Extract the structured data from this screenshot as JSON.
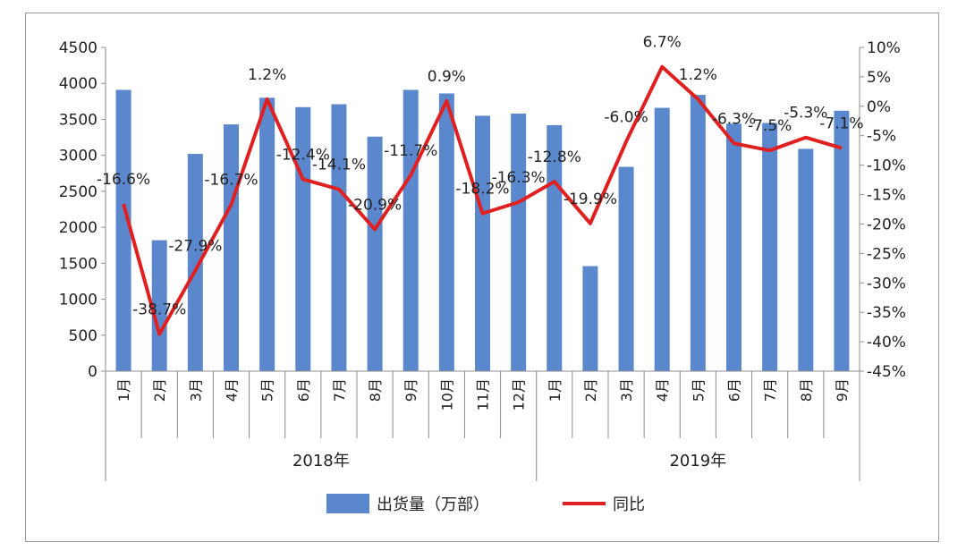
{
  "chart_data": {
    "type": "bar+line",
    "title": "",
    "xlabel": "",
    "ylabel": "",
    "categories": [
      "1月",
      "2月",
      "3月",
      "4月",
      "5月",
      "6月",
      "7月",
      "8月",
      "9月",
      "10月",
      "11月",
      "12月",
      "1月",
      "2月",
      "3月",
      "4月",
      "5月",
      "6月",
      "7月",
      "8月",
      "9月"
    ],
    "groups": [
      {
        "label": "2018年",
        "count": 12
      },
      {
        "label": "2019年",
        "count": 9
      }
    ],
    "series": [
      {
        "name": "出货量（万部）",
        "type": "bar",
        "axis": "left",
        "color": "#5B87CC",
        "values": [
          3910,
          1820,
          3020,
          3430,
          3800,
          3670,
          3710,
          3260,
          3910,
          3860,
          3550,
          3580,
          3420,
          1460,
          2840,
          3660,
          3840,
          3440,
          3450,
          3090,
          3620
        ]
      },
      {
        "name": "同比",
        "type": "line",
        "axis": "right",
        "color": "#E02020",
        "values": [
          -16.6,
          -38.7,
          -27.9,
          -16.7,
          1.2,
          -12.4,
          -14.1,
          -20.9,
          -11.7,
          0.9,
          -18.2,
          -16.3,
          -12.8,
          -19.9,
          -6.0,
          6.7,
          1.2,
          -6.3,
          -7.5,
          -5.3,
          -7.1
        ],
        "labels": [
          "-16.6%",
          "-38.7%",
          "-27.9%",
          "-16.7%",
          "1.2%",
          "-12.4%",
          "-14.1%",
          "-20.9%",
          "-11.7%",
          "0.9%",
          "-18.2%",
          "-16.3%",
          "-12.8%",
          "-19.9%",
          "-6.0%",
          "6.7%",
          "1.2%",
          "-6.3%",
          "-7.5%",
          "-5.3%",
          "-7.1%"
        ]
      }
    ],
    "y_left": {
      "min": 0,
      "max": 4500,
      "ticks": [
        "0",
        "500",
        "1000",
        "1500",
        "2000",
        "2500",
        "3000",
        "3500",
        "4000",
        "4500"
      ]
    },
    "y_right": {
      "min": -45,
      "max": 10,
      "ticks": [
        "-45%",
        "-40%",
        "-35%",
        "-30%",
        "-25%",
        "-20%",
        "-15%",
        "-10%",
        "-5%",
        "0%",
        "5%",
        "10%"
      ]
    },
    "grid": false,
    "legend": {
      "position": "bottom"
    }
  }
}
